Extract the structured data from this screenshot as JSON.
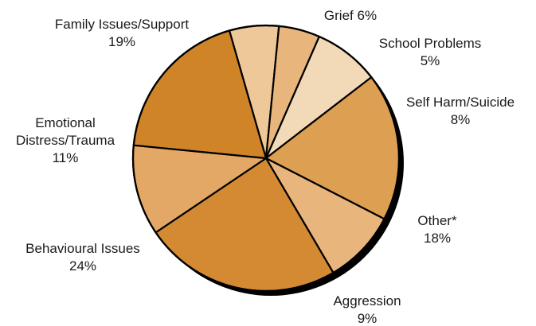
{
  "chart_data": {
    "type": "pie",
    "unit": "%",
    "slices": [
      {
        "label": [
          "Grief 6%"
        ],
        "value": 6,
        "color": "#efc89a"
      },
      {
        "label": [
          "School Problems",
          "5%"
        ],
        "value": 5,
        "color": "#e8b57c"
      },
      {
        "label": [
          "Self Harm/Suicide",
          "8%"
        ],
        "value": 8,
        "color": "#f2dab9"
      },
      {
        "label": [
          "Other*",
          "18%"
        ],
        "value": 18,
        "color": "#dda053"
      },
      {
        "label": [
          "Aggression",
          "9%"
        ],
        "value": 9,
        "color": "#e8b57c"
      },
      {
        "label": [
          "Behavioural Issues",
          "24%"
        ],
        "value": 24,
        "color": "#d38a32"
      },
      {
        "label": [
          "Emotional",
          "Distress/Trauma",
          "11%"
        ],
        "value": 11,
        "color": "#e3a866"
      },
      {
        "label": [
          "Family Issues/Support",
          "19%"
        ],
        "value": 19,
        "color": "#cf8428"
      }
    ]
  }
}
